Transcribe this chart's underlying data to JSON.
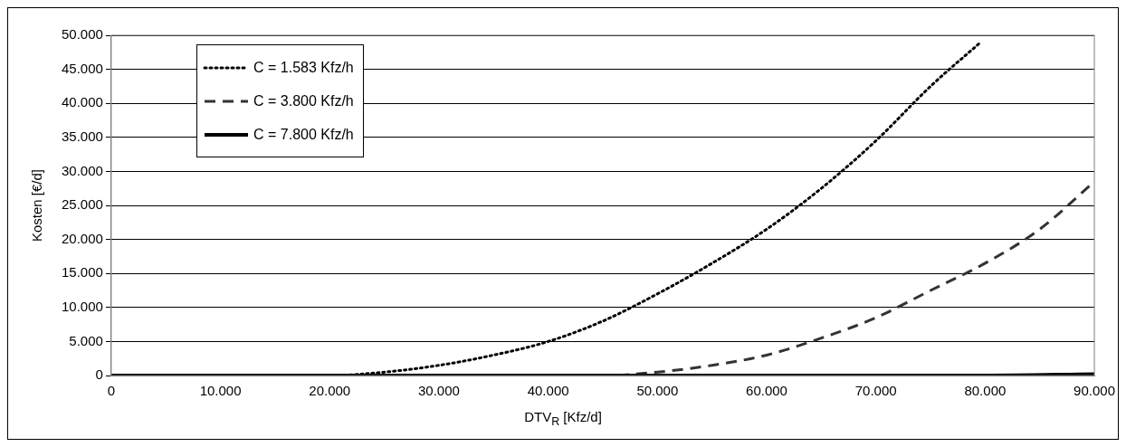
{
  "chart_data": {
    "type": "line",
    "xlabel": "DTV$_{R}$ [Kfz/d]",
    "ylabel": "Kosten [€/d]",
    "xlim": [
      0,
      90000
    ],
    "xticks": [
      0,
      {
        "value": 10000,
        "label": "10.000"
      },
      {
        "value": 20000,
        "label": "20.000"
      },
      {
        "value": 30000,
        "label": "30.000"
      },
      {
        "value": 40000,
        "label": "40.000"
      },
      {
        "value": 50000,
        "label": "50.000"
      },
      {
        "value": 60000,
        "label": "60.000"
      },
      {
        "value": 70000,
        "label": "70.000"
      },
      {
        "value": 80000,
        "label": "80.000"
      },
      {
        "value": 90000,
        "label": "90.000"
      }
    ],
    "ylim": [
      0,
      50000
    ],
    "yticks": [
      0,
      {
        "value": 5000,
        "label": "5.000"
      },
      {
        "value": 10000,
        "label": "10.000"
      },
      {
        "value": 15000,
        "label": "15.000"
      },
      {
        "value": 20000,
        "label": "20.000"
      },
      {
        "value": 25000,
        "label": "25.000"
      },
      {
        "value": 30000,
        "label": "30.000"
      },
      {
        "value": 35000,
        "label": "35.000"
      },
      {
        "value": 40000,
        "label": "40.000"
      },
      {
        "value": 45000,
        "label": "45.000"
      },
      {
        "value": 50000,
        "label": "50.000"
      }
    ],
    "grid": "y",
    "legend": "top left",
    "marker": "none",
    "series": [
      {
        "name": "C = 1.583 Kfz/h",
        "color": "#000000",
        "line_style": "dotted",
        "x": [
          0,
          10000,
          20000,
          25000,
          30000,
          35000,
          40000,
          45000,
          50000,
          55000,
          60000,
          65000,
          70000,
          75000,
          79600
        ],
        "values": [
          0,
          0,
          0,
          500,
          1500,
          3000,
          5000,
          8000,
          12000,
          16500,
          21500,
          27500,
          34500,
          42500,
          49000
        ]
      },
      {
        "name": "C = 3.800 Kfz/h",
        "color": "#333333",
        "line_style": "dashed",
        "x": [
          0,
          10000,
          20000,
          30000,
          40000,
          45000,
          50000,
          55000,
          60000,
          65000,
          70000,
          75000,
          80000,
          85000,
          90000
        ],
        "values": [
          0,
          0,
          0,
          0,
          0,
          0,
          500,
          1500,
          3000,
          5500,
          8500,
          12500,
          16500,
          21500,
          28500
        ]
      },
      {
        "name": "C = 7.800 Kfz/h",
        "color": "#000000",
        "line_style": "solid",
        "x": [
          0,
          20000,
          40000,
          60000,
          80000,
          90000
        ],
        "values": [
          0,
          0,
          0,
          0,
          0,
          200
        ]
      }
    ]
  }
}
